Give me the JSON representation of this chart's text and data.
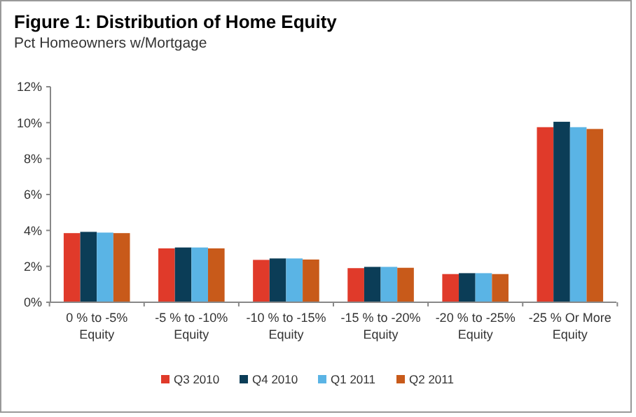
{
  "chart_data": {
    "type": "bar",
    "title": "Figure 1: Distribution of Home Equity",
    "subtitle": "Pct Homeowners  w/Mortgage",
    "categories": [
      "0 % to -5%\nEquity",
      "-5 % to -10%\nEquity",
      "-10 % to -15%\nEquity",
      "-15 % to -20%\nEquity",
      "-20 % to -25%\nEquity",
      "-25 % Or More\nEquity"
    ],
    "series": [
      {
        "name": "Q3 2010",
        "color": "#e03a2a",
        "values": [
          3.85,
          3.0,
          2.36,
          1.9,
          1.57,
          9.75
        ]
      },
      {
        "name": "Q4 2010",
        "color": "#0b3d57",
        "values": [
          3.92,
          3.05,
          2.44,
          1.97,
          1.62,
          10.05
        ]
      },
      {
        "name": "Q1 2011",
        "color": "#5ab4e5",
        "values": [
          3.88,
          3.05,
          2.44,
          1.97,
          1.62,
          9.75
        ]
      },
      {
        "name": "Q2 2011",
        "color": "#c85a1a",
        "values": [
          3.85,
          3.0,
          2.38,
          1.92,
          1.57,
          9.65
        ]
      }
    ],
    "ylim": [
      0,
      12
    ],
    "yticks": [
      {
        "value": 0,
        "label": "0%"
      },
      {
        "value": 2,
        "label": "2%"
      },
      {
        "value": 4,
        "label": "4%"
      },
      {
        "value": 6,
        "label": "6%"
      },
      {
        "value": 8,
        "label": "8%"
      },
      {
        "value": 10,
        "label": "10%"
      },
      {
        "value": 12,
        "label": "12%"
      }
    ],
    "legend": "bottom"
  }
}
